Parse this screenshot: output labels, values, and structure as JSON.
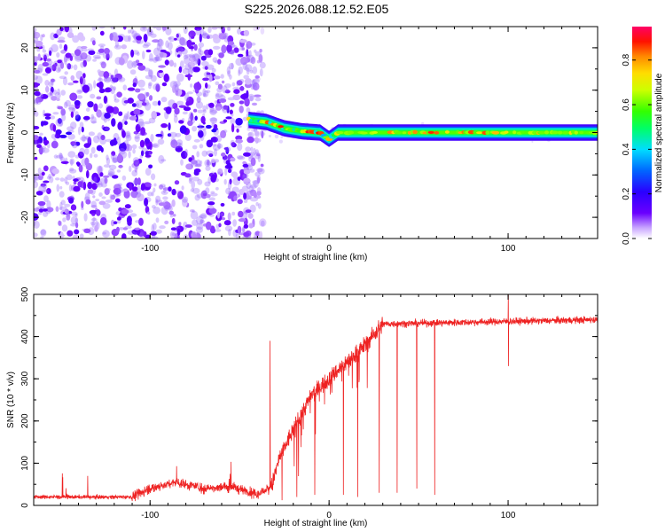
{
  "title": "S225.2026.088.12.52.E05",
  "chart_data": [
    {
      "type": "heatmap",
      "name": "spectrogram",
      "xlabel": "Height of straight line (km)",
      "ylabel": "Frequency (Hz)",
      "xlim": [
        -165,
        150
      ],
      "ylim": [
        -25,
        25
      ],
      "xticks": [
        -100,
        0,
        100
      ],
      "yticks": [
        -20,
        -10,
        0,
        10,
        20
      ],
      "colorbar": {
        "label": "Normalized spectral amplitude",
        "range": [
          0.0,
          0.95
        ],
        "ticks": [
          "0.0",
          "0.2",
          "0.4",
          "0.6",
          "0.8"
        ],
        "tick_values": [
          0.0,
          0.2,
          0.4,
          0.6,
          0.8
        ]
      },
      "description_of_features": {
        "noise_region_x": [
          -165,
          -45
        ],
        "signal_trace": [
          {
            "x": -45,
            "f": 3
          },
          {
            "x": -35,
            "f": 2.5
          },
          {
            "x": -25,
            "f": 1
          },
          {
            "x": -15,
            "f": 0.3
          },
          {
            "x": -5,
            "f": 0
          },
          {
            "x": 0,
            "f": -1.5
          },
          {
            "x": 5,
            "f": 0
          },
          {
            "x": 150,
            "f": 0
          }
        ],
        "band_half_width_hz": 1.2
      }
    },
    {
      "type": "line",
      "name": "snr",
      "xlabel": "Height of straight line (km)",
      "ylabel": "SNR (10 * v/v)",
      "xlim": [
        -165,
        150
      ],
      "ylim": [
        0,
        500
      ],
      "xticks": [
        -100,
        0,
        100
      ],
      "yticks": [
        0,
        100,
        200,
        300,
        400,
        500
      ],
      "color": "#ee2222",
      "profile": [
        {
          "x": -165,
          "y": 20
        },
        {
          "x": -110,
          "y": 20
        },
        {
          "x": -100,
          "y": 40
        },
        {
          "x": -85,
          "y": 55
        },
        {
          "x": -70,
          "y": 40
        },
        {
          "x": -55,
          "y": 45
        },
        {
          "x": -40,
          "y": 25
        },
        {
          "x": -32,
          "y": 45
        },
        {
          "x": -28,
          "y": 110
        },
        {
          "x": -20,
          "y": 180
        },
        {
          "x": -10,
          "y": 260
        },
        {
          "x": 0,
          "y": 300
        },
        {
          "x": 10,
          "y": 340
        },
        {
          "x": 20,
          "y": 380
        },
        {
          "x": 30,
          "y": 430
        },
        {
          "x": 150,
          "y": 440
        }
      ],
      "dropouts": [
        {
          "x": -18,
          "y": 20
        },
        {
          "x": -8,
          "y": 25
        },
        {
          "x": 8,
          "y": 25
        },
        {
          "x": 16,
          "y": 20
        },
        {
          "x": 28,
          "y": 30
        },
        {
          "x": 38,
          "y": 30
        },
        {
          "x": 49,
          "y": 40
        },
        {
          "x": 59,
          "y": 25
        }
      ],
      "spikes": [
        {
          "x": -33,
          "y": 390
        },
        {
          "x": 100,
          "y": 500
        },
        {
          "x": 100,
          "y": 330
        }
      ]
    }
  ]
}
